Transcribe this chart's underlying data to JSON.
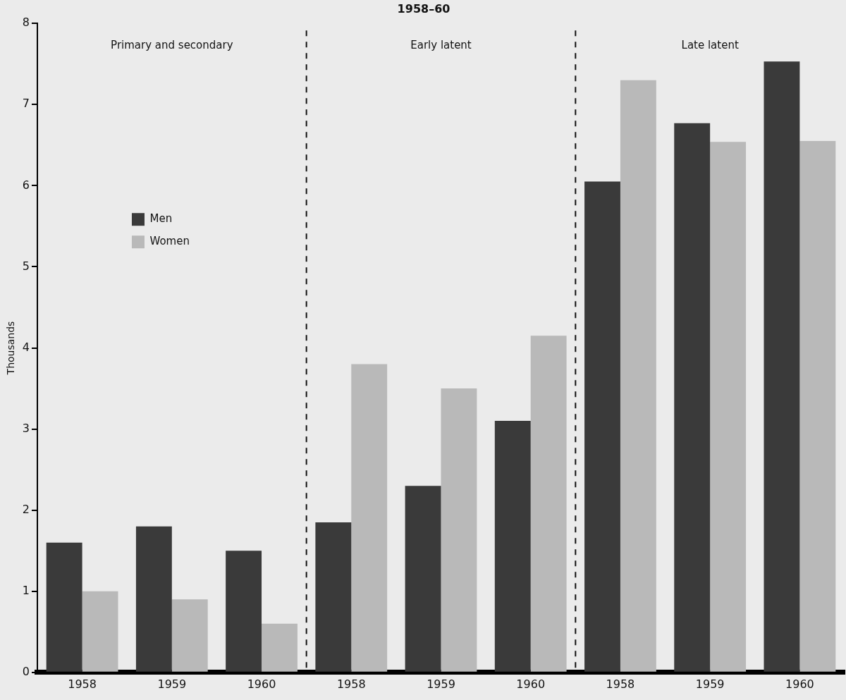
{
  "chart_data": {
    "type": "bar",
    "title": "1958–60",
    "ylabel": "Thousands",
    "categories": [
      "1958",
      "1959",
      "1960",
      "1958",
      "1959",
      "1960",
      "1958",
      "1959",
      "1960"
    ],
    "series": [
      {
        "name": "Men",
        "color": "#3a3a3a",
        "values": [
          1.6,
          1.8,
          1.5,
          1.85,
          2.3,
          3.1,
          6.05,
          6.77,
          7.53
        ]
      },
      {
        "name": "Women",
        "color": "#b9b9b9",
        "values": [
          1.0,
          0.9,
          0.6,
          3.8,
          3.5,
          4.15,
          7.3,
          6.54,
          6.55
        ]
      }
    ],
    "ylim": [
      0,
      8
    ],
    "yticks": [
      0,
      1,
      2,
      3,
      4,
      5,
      6,
      7,
      8
    ],
    "grid": false,
    "legend": "top left",
    "annotations": [
      "Primary and secondary",
      "Early latent",
      "Late latent"
    ]
  }
}
